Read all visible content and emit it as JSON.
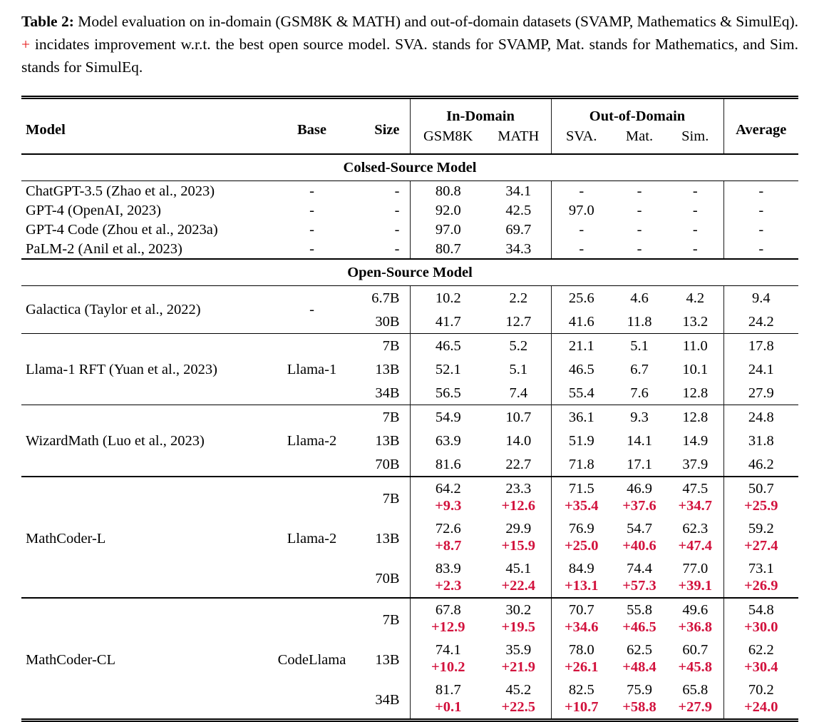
{
  "colors": {
    "accent_red": "#d2123d",
    "caption_plus_red": "#e51616",
    "text": "#000000",
    "rule": "#000000"
  },
  "caption": {
    "label": "Table 2:",
    "before_plus": "Model evaluation on in-domain (GSM8K & MATH) and out-of-domain datasets (SVAMP, Mathematics & SimulEq).",
    "plus": "+",
    "after_plus": "incidates improvement w.r.t. the best open source model. SVA. stands for SVAMP, Mat. stands for Mathematics, and Sim. stands for SimulEq."
  },
  "table": {
    "headers": {
      "model": "Model",
      "base": "Base",
      "size": "Size",
      "in_domain": "In-Domain",
      "out_of_domain": "Out-of-Domain",
      "average": "Average",
      "in_domain_cols": [
        "GSM8K",
        "MATH"
      ],
      "out_of_domain_cols": [
        "SVA.",
        "Mat.",
        "Sim."
      ]
    },
    "sections": [
      {
        "title": "Colsed-Source Model",
        "compact": true,
        "groups": [
          {
            "model": "ChatGPT-3.5 (Zhao et al., 2023)",
            "base": "-",
            "rows": [
              {
                "size": "-",
                "values": [
                  "80.8",
                  "34.1",
                  "-",
                  "-",
                  "-",
                  "-"
                ]
              }
            ]
          },
          {
            "model": "GPT-4 (OpenAI, 2023)",
            "base": "-",
            "rows": [
              {
                "size": "-",
                "values": [
                  "92.0",
                  "42.5",
                  "97.0",
                  "-",
                  "-",
                  "-"
                ]
              }
            ]
          },
          {
            "model": "GPT-4 Code (Zhou et al., 2023a)",
            "base": "-",
            "rows": [
              {
                "size": "-",
                "values": [
                  "97.0",
                  "69.7",
                  "-",
                  "-",
                  "-",
                  "-"
                ]
              }
            ]
          },
          {
            "model": "PaLM-2 (Anil et al., 2023)",
            "base": "-",
            "rows": [
              {
                "size": "-",
                "values": [
                  "80.7",
                  "34.3",
                  "-",
                  "-",
                  "-",
                  "-"
                ]
              }
            ]
          }
        ]
      },
      {
        "title": "Open-Source Model",
        "rule_above": "rule-thick",
        "groups": [
          {
            "model": "Galactica (Taylor et al., 2022)",
            "base": "-",
            "rows": [
              {
                "size": "6.7B",
                "values": [
                  "10.2",
                  "2.2",
                  "25.6",
                  "4.6",
                  "4.2",
                  "9.4"
                ]
              },
              {
                "size": "30B",
                "values": [
                  "41.7",
                  "12.7",
                  "41.6",
                  "11.8",
                  "13.2",
                  "24.2"
                ]
              }
            ]
          },
          {
            "model": "Llama-1 RFT (Yuan et al., 2023)",
            "base": "Llama-1",
            "rule": "rule-thin",
            "rows": [
              {
                "size": "7B",
                "values": [
                  "46.5",
                  "5.2",
                  "21.1",
                  "5.1",
                  "11.0",
                  "17.8"
                ]
              },
              {
                "size": "13B",
                "values": [
                  "52.1",
                  "5.1",
                  "46.5",
                  "6.7",
                  "10.1",
                  "24.1"
                ]
              },
              {
                "size": "34B",
                "values": [
                  "56.5",
                  "7.4",
                  "55.4",
                  "7.6",
                  "12.8",
                  "27.9"
                ]
              }
            ]
          },
          {
            "model": "WizardMath (Luo et al., 2023)",
            "base": "Llama-2",
            "rule": "rule-thin",
            "rows": [
              {
                "size": "7B",
                "values": [
                  "54.9",
                  "10.7",
                  "36.1",
                  "9.3",
                  "12.8",
                  "24.8"
                ]
              },
              {
                "size": "13B",
                "values": [
                  "63.9",
                  "14.0",
                  "51.9",
                  "14.1",
                  "14.9",
                  "31.8"
                ]
              },
              {
                "size": "70B",
                "values": [
                  "81.6",
                  "22.7",
                  "71.8",
                  "17.1",
                  "37.9",
                  "46.2"
                ]
              }
            ]
          },
          {
            "model": "MathCoder-L",
            "base": "Llama-2",
            "rule": "rule-thick",
            "rows": [
              {
                "size": "7B",
                "values": [
                  "64.2",
                  "23.3",
                  "71.5",
                  "46.9",
                  "47.5",
                  "50.7"
                ],
                "deltas": [
                  "+9.3",
                  "+12.6",
                  "+35.4",
                  "+37.6",
                  "+34.7",
                  "+25.9"
                ]
              },
              {
                "size": "13B",
                "values": [
                  "72.6",
                  "29.9",
                  "76.9",
                  "54.7",
                  "62.3",
                  "59.2"
                ],
                "deltas": [
                  "+8.7",
                  "+15.9",
                  "+25.0",
                  "+40.6",
                  "+47.4",
                  "+27.4"
                ]
              },
              {
                "size": "70B",
                "values": [
                  "83.9",
                  "45.1",
                  "84.9",
                  "74.4",
                  "77.0",
                  "73.1"
                ],
                "deltas": [
                  "+2.3",
                  "+22.4",
                  "+13.1",
                  "+57.3",
                  "+39.1",
                  "+26.9"
                ]
              }
            ]
          },
          {
            "model": "MathCoder-CL",
            "base": "CodeLlama",
            "rule": "rule-mid",
            "rows": [
              {
                "size": "7B",
                "values": [
                  "67.8",
                  "30.2",
                  "70.7",
                  "55.8",
                  "49.6",
                  "54.8"
                ],
                "deltas": [
                  "+12.9",
                  "+19.5",
                  "+34.6",
                  "+46.5",
                  "+36.8",
                  "+30.0"
                ]
              },
              {
                "size": "13B",
                "values": [
                  "74.1",
                  "35.9",
                  "78.0",
                  "62.5",
                  "60.7",
                  "62.2"
                ],
                "deltas": [
                  "+10.2",
                  "+21.9",
                  "+26.1",
                  "+48.4",
                  "+45.8",
                  "+30.4"
                ]
              },
              {
                "size": "34B",
                "values": [
                  "81.7",
                  "45.2",
                  "82.5",
                  "75.9",
                  "65.8",
                  "70.2"
                ],
                "deltas": [
                  "+0.1",
                  "+22.5",
                  "+10.7",
                  "+58.8",
                  "+27.9",
                  "+24.0"
                ]
              }
            ]
          }
        ]
      }
    ]
  }
}
